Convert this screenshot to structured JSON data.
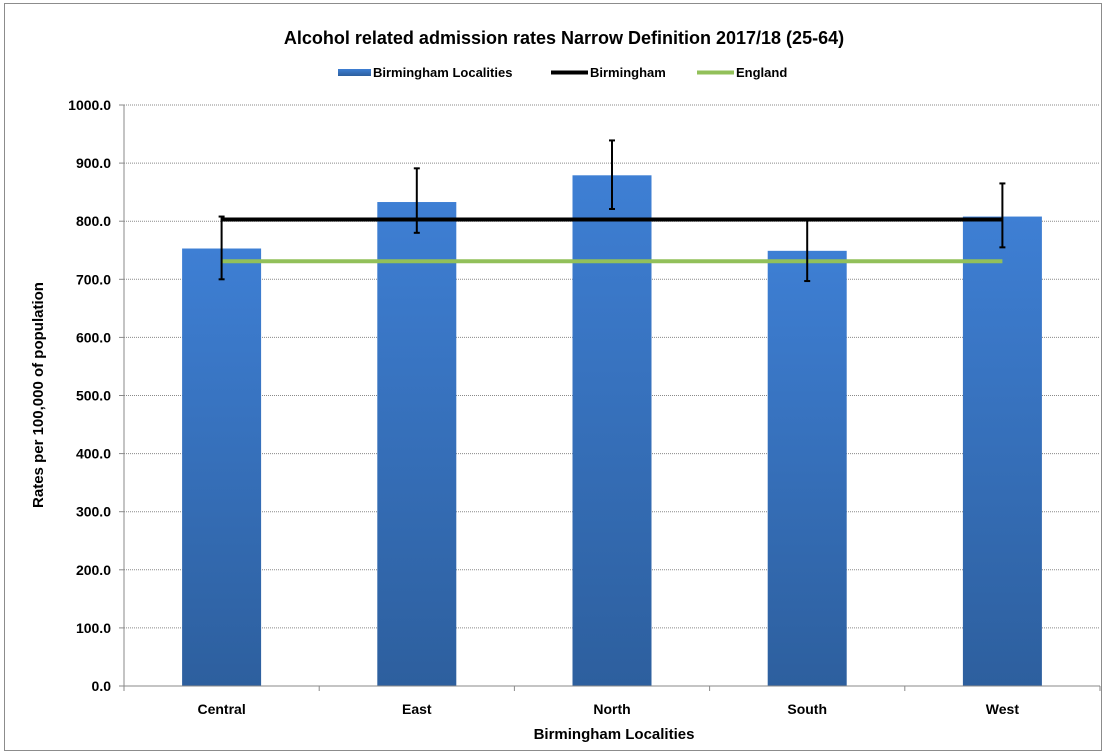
{
  "chart_data": {
    "type": "bar",
    "title": "Alcohol related admission rates Narrow Definition 2017/18 (25-64)",
    "xlabel": "Birmingham Localities",
    "ylabel": "Rates per 100,000 of population",
    "categories": [
      "Central",
      "East",
      "North",
      "South",
      "West"
    ],
    "series": [
      {
        "name": "Birmingham Localities",
        "kind": "bar",
        "values": [
          753,
          833,
          879,
          749,
          808
        ],
        "error_low": [
          700,
          780,
          821,
          697,
          755
        ],
        "error_high": [
          808,
          891,
          939,
          803,
          865
        ],
        "color": "#3b78c9"
      },
      {
        "name": "Birmingham",
        "kind": "line",
        "value": 803,
        "color": "#000000"
      },
      {
        "name": "England",
        "kind": "line",
        "value": 731,
        "color": "#92c05a"
      }
    ],
    "ylim": [
      0,
      1000
    ],
    "yticks": [
      "0.0",
      "100.0",
      "200.0",
      "300.0",
      "400.0",
      "500.0",
      "600.0",
      "700.0",
      "800.0",
      "900.0",
      "1000.0"
    ],
    "grid": true,
    "legend_position": "top"
  }
}
